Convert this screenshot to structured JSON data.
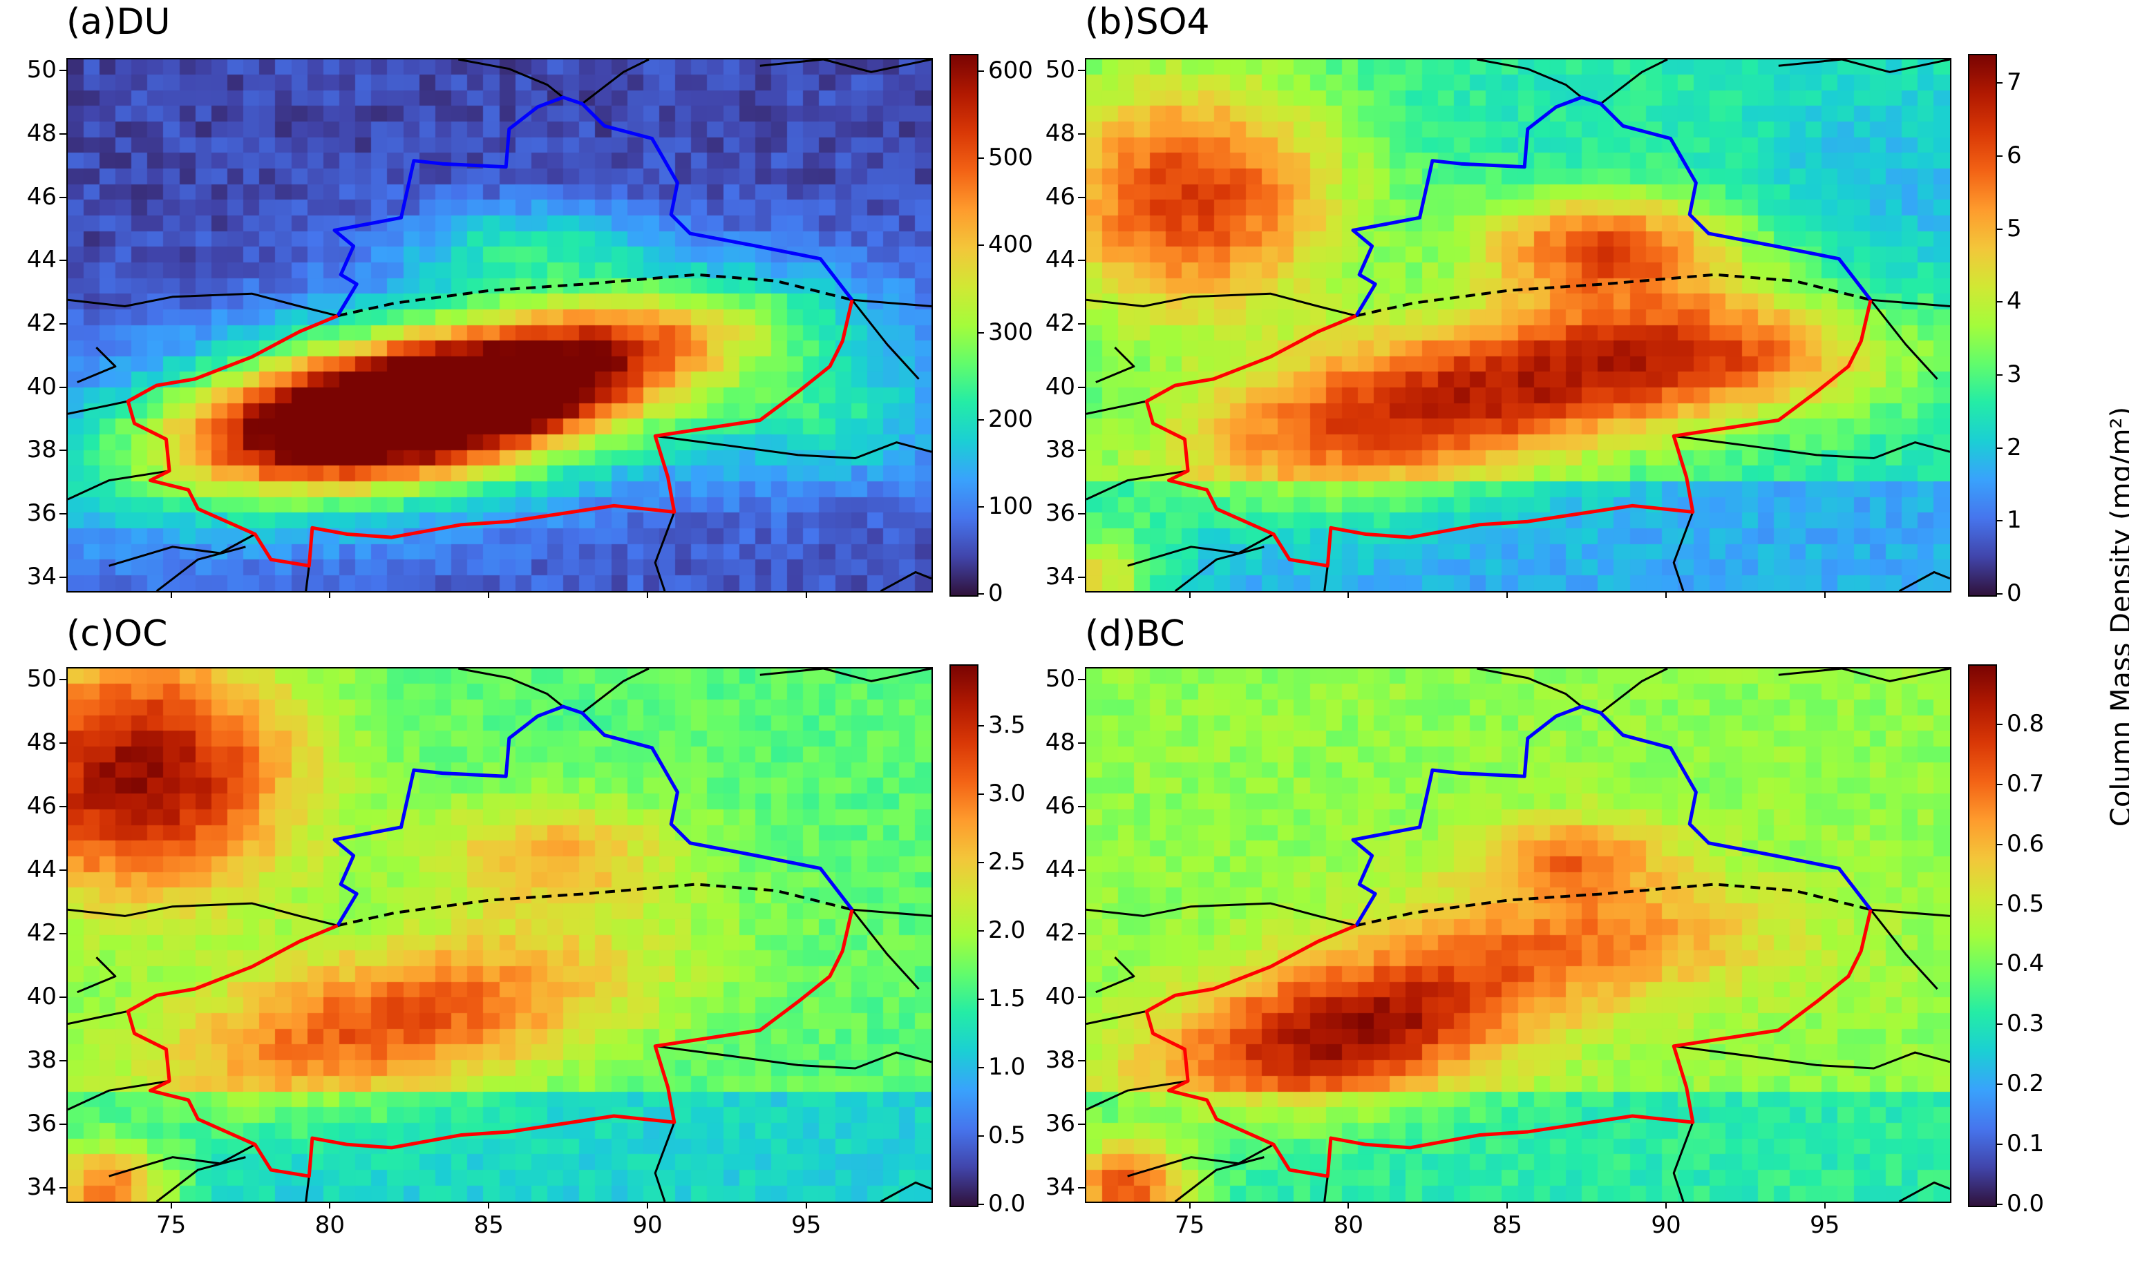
{
  "panels": [
    {
      "id": "a",
      "title": "(a)DU",
      "species": "DU",
      "colorbar_ticks": [
        "0",
        "100",
        "200",
        "300",
        "400",
        "500",
        "600"
      ],
      "vmin": 0,
      "vmax": 620
    },
    {
      "id": "b",
      "title": "(b)SO4",
      "species": "SO4",
      "colorbar_ticks": [
        "0",
        "1",
        "2",
        "3",
        "4",
        "5",
        "6",
        "7"
      ],
      "vmin": 0,
      "vmax": 7.4
    },
    {
      "id": "c",
      "title": "(c)OC",
      "species": "OC",
      "colorbar_ticks": [
        "0.0",
        "0.5",
        "1.0",
        "1.5",
        "2.0",
        "2.5",
        "3.0",
        "3.5"
      ],
      "vmin": 0,
      "vmax": 3.95
    },
    {
      "id": "d",
      "title": "(d)BC",
      "species": "BC",
      "colorbar_ticks": [
        "0.0",
        "0.1",
        "0.2",
        "0.3",
        "0.4",
        "0.5",
        "0.6",
        "0.7",
        "0.8"
      ],
      "vmin": 0,
      "vmax": 0.9
    }
  ],
  "axes": {
    "lat_ticks": [
      "50",
      "48",
      "46",
      "44",
      "42",
      "40",
      "38",
      "36",
      "34"
    ],
    "lon_ticks": [
      "75",
      "80",
      "85",
      "90",
      "95"
    ],
    "lon_range": [
      71.7,
      98.9
    ],
    "lat_range": [
      33.6,
      50.4
    ]
  },
  "colorbar_label": "Column Mass Density (mg/m²)",
  "colormap": [
    "#30123b",
    "#4145ab",
    "#4675ed",
    "#39a2fc",
    "#1bcfd4",
    "#24eca6",
    "#61fc6c",
    "#a4fc3b",
    "#d1e834",
    "#f3c63a",
    "#fe9b2d",
    "#f36315",
    "#d93806",
    "#b11901",
    "#7a0402"
  ],
  "line_colors": {
    "north_border": "#0000ff",
    "south_border": "#ff0000",
    "divider": "#000000",
    "country_borders": "#000000"
  }
}
